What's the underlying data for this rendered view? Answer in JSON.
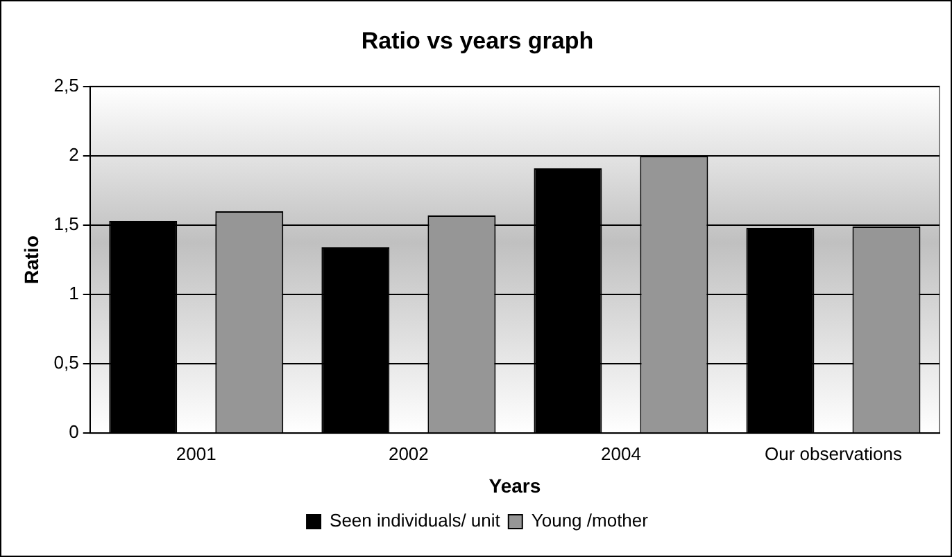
{
  "chart_data": {
    "type": "bar",
    "title": "Ratio vs years graph",
    "xlabel": "Years",
    "ylabel": "Ratio",
    "categories": [
      "2001",
      "2002",
      "2004",
      "Our observations"
    ],
    "series": [
      {
        "name": "Seen individuals/ unit",
        "color": "#000000",
        "values": [
          1.53,
          1.34,
          1.91,
          1.48
        ]
      },
      {
        "name": "Young /mother",
        "color": "#969696",
        "values": [
          1.6,
          1.57,
          2.0,
          1.49
        ]
      }
    ],
    "ylim": [
      0,
      2.5
    ],
    "yticks": [
      0,
      {
        "value": 0.5,
        "label": "0,5"
      },
      1,
      {
        "value": 1.5,
        "label": "1,5"
      },
      2,
      {
        "value": 2.5,
        "label": "2,5"
      }
    ],
    "grid": "y",
    "legend": "bottom"
  }
}
